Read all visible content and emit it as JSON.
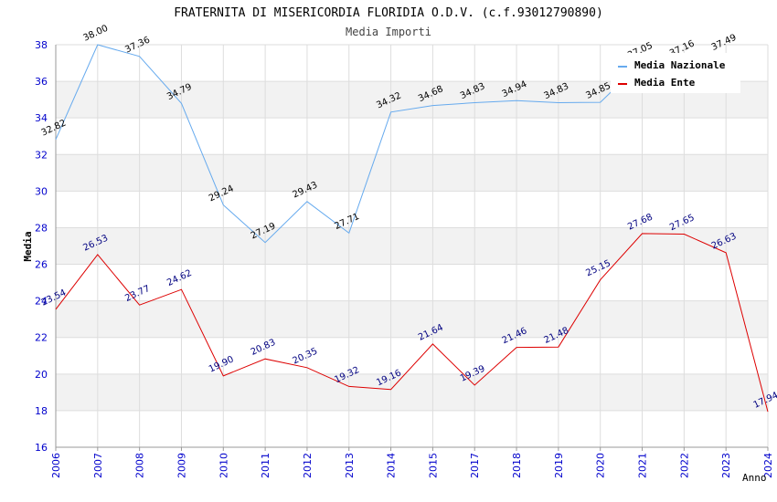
{
  "chart_data": {
    "type": "line",
    "title": "FRATERNITA DI MISERICORDIA FLORIDIA O.D.V. (c.f.93012790890)",
    "subtitle": "Media Importi",
    "xlabel": "Anno",
    "ylabel": "Media",
    "ylim": [
      16,
      38
    ],
    "yticks": [
      "16",
      "18",
      "20",
      "22",
      "24",
      "26",
      "28",
      "30",
      "32",
      "34",
      "36",
      "38"
    ],
    "categories": [
      "2006",
      "2007",
      "2008",
      "2009",
      "2010",
      "2011",
      "2012",
      "2013",
      "2014",
      "2015",
      "2017",
      "2018",
      "2019",
      "2020",
      "2021",
      "2022",
      "2023",
      "2024"
    ],
    "series": [
      {
        "name": "Media Nazionale",
        "color": "#66aaee",
        "values": [
          32.82,
          38.0,
          37.36,
          34.79,
          29.24,
          27.19,
          29.43,
          27.71,
          34.32,
          34.68,
          34.83,
          34.94,
          34.83,
          34.85,
          37.05,
          37.16,
          37.49,
          null
        ],
        "labels": [
          "32.82",
          "38.00",
          "37.36",
          "34.79",
          "29.24",
          "27.19",
          "29.43",
          "27.71",
          "34.32",
          "34.68",
          "34.83",
          "34.94",
          "34.83",
          "34.85",
          "37.05",
          "37.16",
          "37.49",
          ""
        ]
      },
      {
        "name": "Media Ente",
        "color": "#dd0000",
        "values": [
          23.54,
          26.53,
          23.77,
          24.62,
          19.9,
          20.83,
          20.35,
          19.32,
          19.16,
          21.64,
          19.39,
          21.46,
          21.48,
          25.15,
          27.68,
          27.65,
          26.63,
          17.94
        ],
        "labels": [
          "23.54",
          "26.53",
          "23.77",
          "24.62",
          "19.90",
          "20.83",
          "20.35",
          "19.32",
          "19.16",
          "21.64",
          "19.39",
          "21.46",
          "21.48",
          "25.15",
          "27.68",
          "27.65",
          "26.63",
          "17.94"
        ]
      }
    ],
    "grid": true,
    "legend_position": "top-right"
  }
}
